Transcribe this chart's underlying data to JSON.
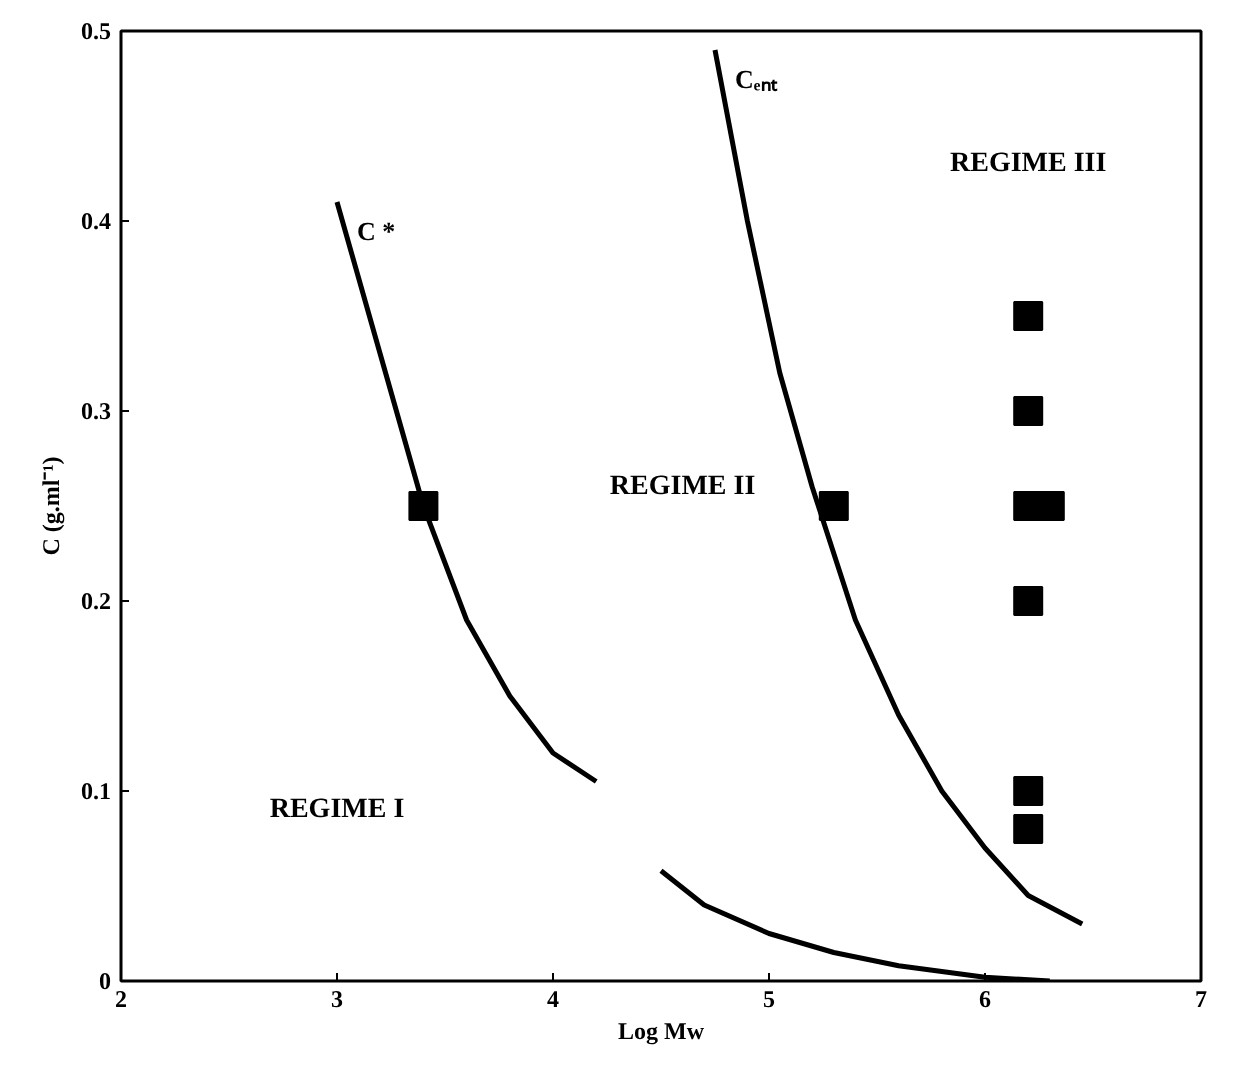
{
  "chart_data": {
    "type": "line",
    "xlabel": "Log Mw",
    "ylabel": "C (g.ml⁻¹)",
    "xlim": [
      2,
      7
    ],
    "ylim": [
      0,
      0.5
    ],
    "xticks": [
      2,
      3,
      4,
      5,
      6,
      7
    ],
    "yticks": [
      0,
      0.1,
      0.2,
      0.3,
      0.4,
      0.5
    ],
    "grid": false,
    "line_style": "solid",
    "series": [
      {
        "name": "C *",
        "color": "#000000",
        "x": [
          3.0,
          3.2,
          3.4,
          3.6,
          3.8,
          4.0,
          4.2
        ],
        "values": [
          0.41,
          0.33,
          0.25,
          0.19,
          0.15,
          0.12,
          0.105
        ]
      },
      {
        "name": "Cₑₙₜ",
        "color": "#000000",
        "x": [
          4.75,
          4.9,
          5.05,
          5.2,
          5.4,
          5.6,
          5.8,
          6.0,
          6.2,
          6.45
        ],
        "values": [
          0.49,
          0.4,
          0.32,
          0.26,
          0.19,
          0.14,
          0.1,
          0.07,
          0.045,
          0.03
        ]
      },
      {
        "color": "#000000",
        "x": [
          4.5,
          4.7,
          5.0,
          5.3,
          5.6,
          6.0,
          6.3
        ],
        "values": [
          0.058,
          0.04,
          0.025,
          0.015,
          0.008,
          0.002,
          0.0
        ]
      },
      {
        "type": "scatter",
        "marker": "square",
        "color": "#000000",
        "x": [
          3.4,
          5.3,
          6.2,
          6.2,
          6.2,
          6.2,
          6.2,
          6.2,
          6.3
        ],
        "values": [
          0.25,
          0.25,
          0.35,
          0.3,
          0.25,
          0.2,
          0.1,
          0.08,
          0.25
        ]
      }
    ],
    "annotations": [
      "REGIME I",
      "REGIME II",
      "REGIME III"
    ]
  }
}
